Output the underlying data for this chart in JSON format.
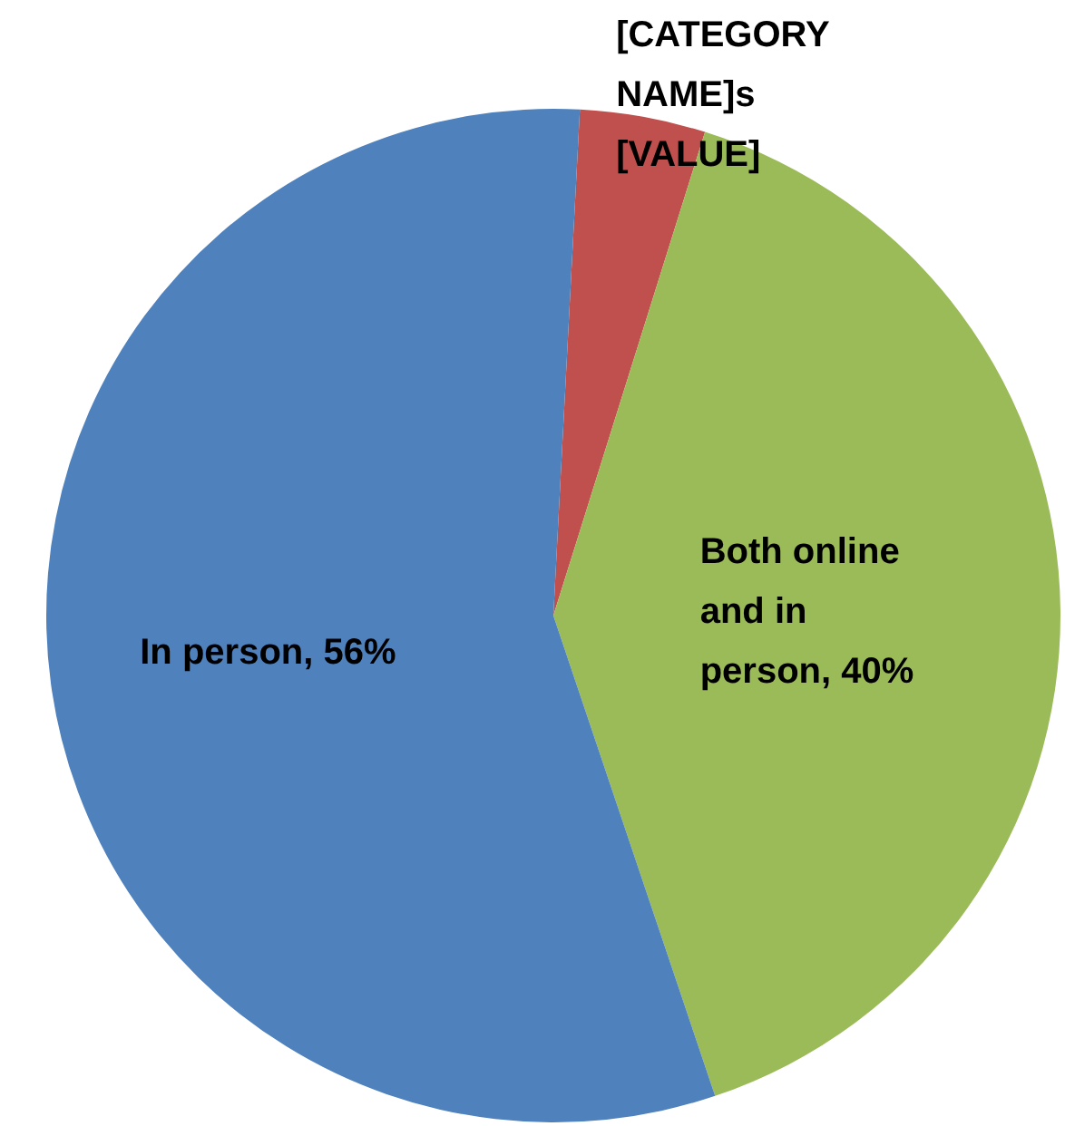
{
  "chart_data": {
    "type": "pie",
    "categories": [
      "[CATEGORY NAME]s",
      "Both online and in person",
      "In person"
    ],
    "values": [
      4,
      40,
      56
    ],
    "value_labels": [
      "[VALUE]",
      "40%",
      "56%"
    ],
    "colors": [
      "#c0504d",
      "#9bbb59",
      "#4f81bd"
    ],
    "legend": false
  }
}
